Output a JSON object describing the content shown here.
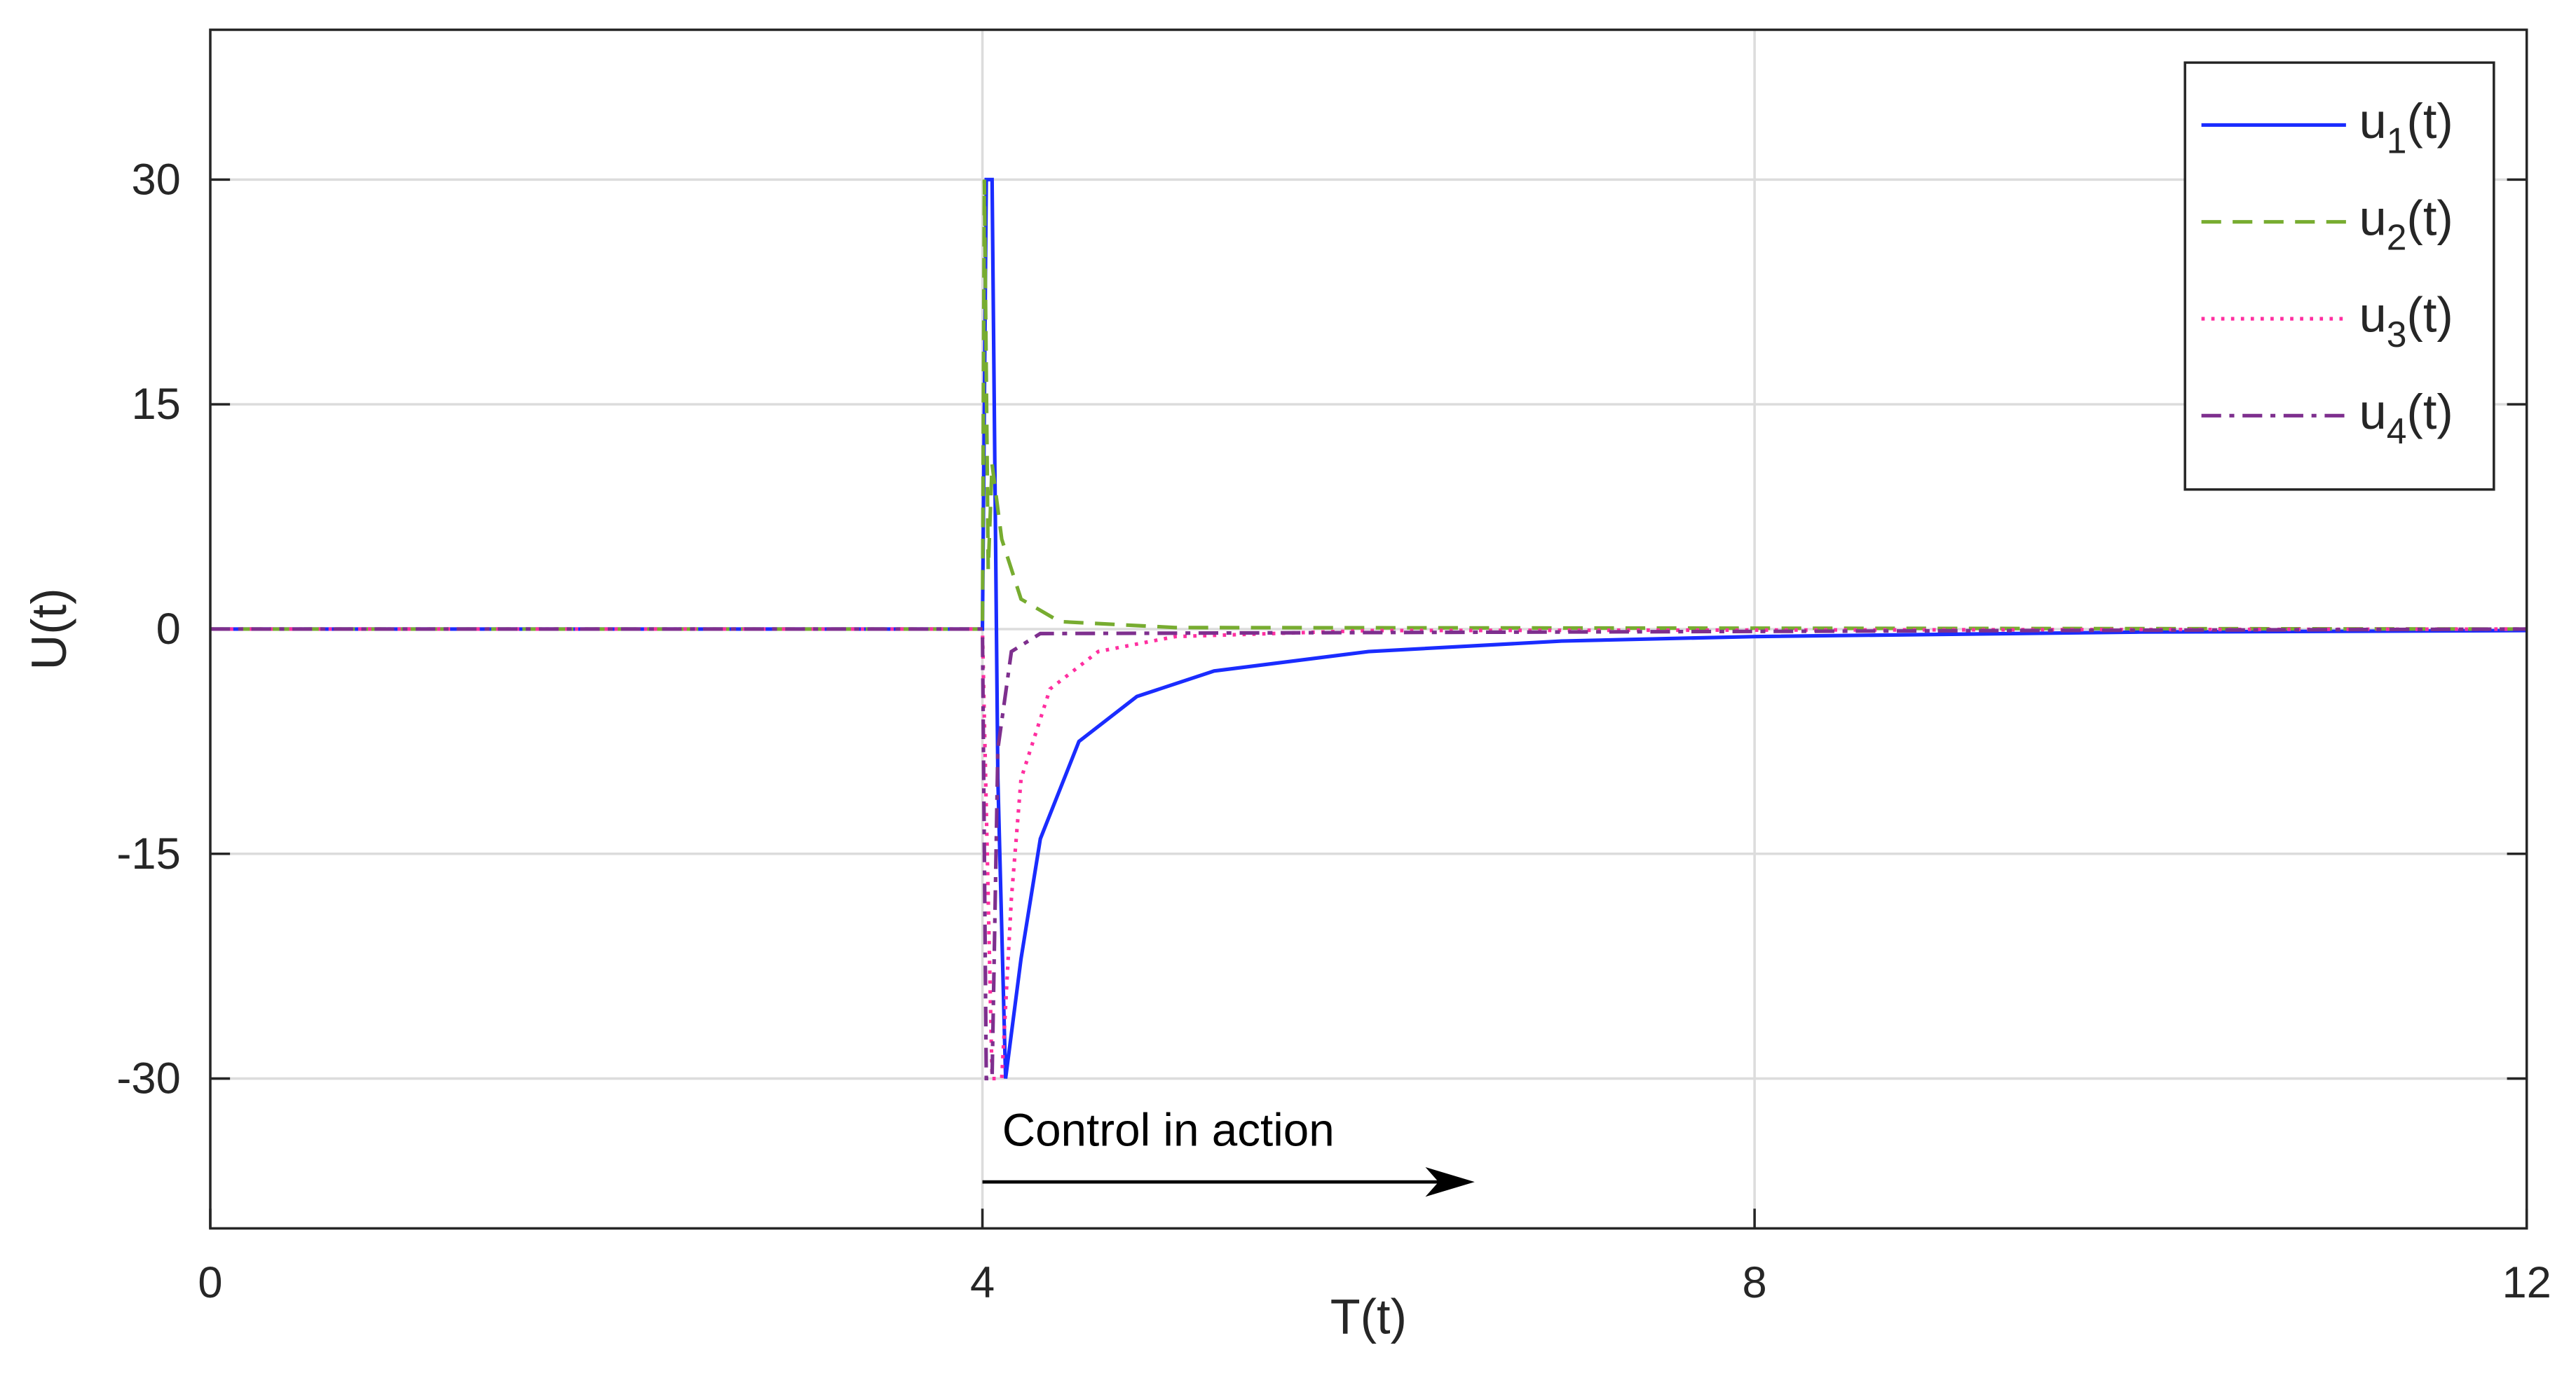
{
  "chart_data": {
    "type": "line",
    "xlabel": "T(t)",
    "ylabel": "U(t)",
    "xlim": [
      0,
      12
    ],
    "xticks": [
      0,
      4,
      8,
      12
    ],
    "ylim": [
      -40,
      40
    ],
    "yticks": [
      -30,
      -15,
      0,
      15,
      30
    ],
    "grid": true,
    "legend": "northeast",
    "annotation": {
      "text": "Control in action",
      "x": 4,
      "y": -33.4,
      "arrow_from": [
        4,
        -36.9
      ],
      "arrow_to": [
        6.55,
        -36.9
      ]
    },
    "series": [
      {
        "name": "u1(t)",
        "color": "#1a2cff",
        "style": "solid",
        "x": [
          0,
          4.0,
          4.02,
          4.05,
          4.08,
          4.12,
          4.2,
          4.3,
          4.5,
          4.8,
          5.2,
          6,
          7,
          8,
          10,
          12
        ],
        "values": [
          0,
          0,
          30,
          30,
          -10,
          -30,
          -22,
          -14,
          -7.5,
          -4.5,
          -2.8,
          -1.5,
          -0.8,
          -0.5,
          -0.2,
          -0.1
        ]
      },
      {
        "name": "u2(t)",
        "color": "#77ac30",
        "style": "dashed",
        "x": [
          0,
          4.0,
          4.01,
          4.03,
          4.05,
          4.1,
          4.2,
          4.4,
          5,
          12
        ],
        "values": [
          0,
          0,
          30,
          4,
          11,
          6,
          2,
          0.5,
          0.1,
          0
        ]
      },
      {
        "name": "u3(t)",
        "color": "#ff2fa0",
        "style": "dotted",
        "x": [
          0,
          4.0,
          4.05,
          4.1,
          4.15,
          4.2,
          4.35,
          4.6,
          5,
          6,
          12
        ],
        "values": [
          0,
          0,
          -30,
          -30,
          -18,
          -10,
          -4,
          -1.5,
          -0.5,
          -0.1,
          0
        ]
      },
      {
        "name": "u4(t)",
        "color": "#7e2f8e",
        "style": "dashdot",
        "x": [
          0,
          4.0,
          4.02,
          4.05,
          4.08,
          4.15,
          4.3,
          12
        ],
        "values": [
          0,
          0,
          -30,
          -30,
          -8,
          -1.5,
          -0.3,
          0
        ]
      }
    ]
  }
}
